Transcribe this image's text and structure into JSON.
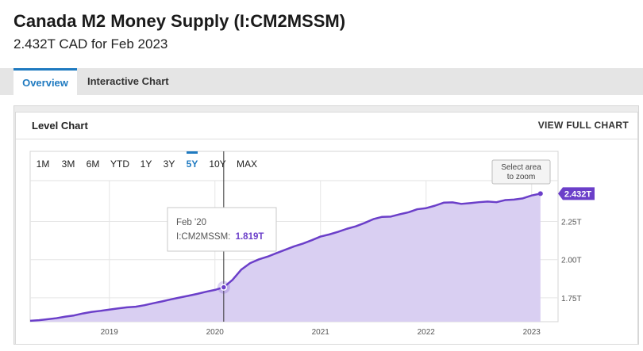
{
  "header": {
    "title": "Canada M2 Money Supply (I:CM2MSSM)",
    "subtitle": "2.432T CAD for Feb 2023"
  },
  "tabs": [
    {
      "label": "Overview",
      "active": true
    },
    {
      "label": "Interactive Chart",
      "active": false
    }
  ],
  "card": {
    "title": "Level Chart",
    "view_full_chart": "VIEW FULL CHART"
  },
  "range_buttons": [
    {
      "label": "1M",
      "active": false
    },
    {
      "label": "3M",
      "active": false
    },
    {
      "label": "6M",
      "active": false
    },
    {
      "label": "YTD",
      "active": false
    },
    {
      "label": "1Y",
      "active": false
    },
    {
      "label": "3Y",
      "active": false
    },
    {
      "label": "5Y",
      "active": true
    },
    {
      "label": "10Y",
      "active": false
    },
    {
      "label": "MAX",
      "active": false
    }
  ],
  "zoom_hint": [
    "Select area",
    "to zoom"
  ],
  "tooltip": {
    "date": "Feb '20",
    "series_label": "I:CM2MSSM:",
    "value": "1.819T"
  },
  "last_value_label": "2.432T",
  "colors": {
    "line": "#6b3fc9",
    "area": "#d9cff2",
    "accent": "#1f7ac0"
  },
  "chart_data": {
    "type": "area",
    "series_name": "I:CM2MSSM",
    "unit": "CAD (trillions)",
    "x": [
      "2018-04",
      "2018-05",
      "2018-06",
      "2018-07",
      "2018-08",
      "2018-09",
      "2018-10",
      "2018-11",
      "2018-12",
      "2019-01",
      "2019-02",
      "2019-03",
      "2019-04",
      "2019-05",
      "2019-06",
      "2019-07",
      "2019-08",
      "2019-09",
      "2019-10",
      "2019-11",
      "2019-12",
      "2020-01",
      "2020-02",
      "2020-03",
      "2020-04",
      "2020-05",
      "2020-06",
      "2020-07",
      "2020-08",
      "2020-09",
      "2020-10",
      "2020-11",
      "2020-12",
      "2021-01",
      "2021-02",
      "2021-03",
      "2021-04",
      "2021-05",
      "2021-06",
      "2021-07",
      "2021-08",
      "2021-09",
      "2021-10",
      "2021-11",
      "2021-12",
      "2022-01",
      "2022-02",
      "2022-03",
      "2022-04",
      "2022-05",
      "2022-06",
      "2022-07",
      "2022-08",
      "2022-09",
      "2022-10",
      "2022-11",
      "2022-12",
      "2023-01",
      "2023-02"
    ],
    "values": [
      1.6,
      1.604,
      1.61,
      1.617,
      1.627,
      1.635,
      1.648,
      1.658,
      1.665,
      1.673,
      1.681,
      1.688,
      1.692,
      1.702,
      1.715,
      1.727,
      1.74,
      1.752,
      1.764,
      1.776,
      1.79,
      1.802,
      1.819,
      1.868,
      1.935,
      1.977,
      2.002,
      2.02,
      2.043,
      2.065,
      2.087,
      2.105,
      2.127,
      2.151,
      2.165,
      2.182,
      2.202,
      2.218,
      2.24,
      2.265,
      2.28,
      2.282,
      2.297,
      2.31,
      2.33,
      2.337,
      2.353,
      2.373,
      2.375,
      2.365,
      2.37,
      2.376,
      2.38,
      2.376,
      2.39,
      2.393,
      2.401,
      2.42,
      2.432
    ],
    "y_ticks": [
      {
        "value": 1.75,
        "label": "1.75T"
      },
      {
        "value": 2.0,
        "label": "2.00T"
      },
      {
        "value": 2.25,
        "label": "2.25T"
      }
    ],
    "x_ticks": [
      {
        "value": "2019-01",
        "label": "2019"
      },
      {
        "value": "2020-01",
        "label": "2020"
      },
      {
        "value": "2021-01",
        "label": "2021"
      },
      {
        "value": "2022-01",
        "label": "2022"
      },
      {
        "value": "2023-01",
        "label": "2023"
      }
    ],
    "ylim": [
      1.594,
      2.517
    ],
    "xlim": [
      "2018-04",
      "2023-04"
    ],
    "highlighted_point": {
      "x": "2020-02",
      "y": 1.819
    },
    "grid": true,
    "y_axis_side": "right"
  }
}
